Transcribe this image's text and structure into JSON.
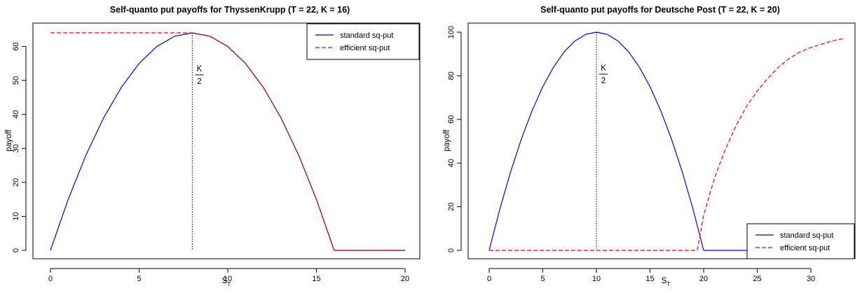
{
  "colors": {
    "standard": "#0000ff",
    "efficient": "#ff0000",
    "axis": "#000000",
    "annotation": "#000000"
  },
  "chart_data": [
    {
      "type": "line",
      "title": "Self-quanto put payoffs for ThyssenKrupp (T = 22, K = 16)",
      "xlabel": "S",
      "xlabel_sub": "T",
      "ylabel": "payoff",
      "xlim": [
        0,
        20
      ],
      "ylim": [
        0,
        64
      ],
      "xticks": [
        0,
        5,
        10,
        15,
        20
      ],
      "yticks": [
        0,
        10,
        20,
        30,
        40,
        50,
        60
      ],
      "grid": false,
      "legend_position": "top-right",
      "annotation": {
        "x": 8,
        "y_top": 64,
        "numerator": "K",
        "denominator": "2"
      },
      "series": [
        {
          "name": "standard sq-put",
          "style": "solid",
          "color": "#0000ff",
          "x": [
            0,
            1,
            2,
            3,
            4,
            5,
            6,
            7,
            8,
            9,
            10,
            11,
            12,
            13,
            14,
            15,
            16,
            17,
            18,
            19,
            20
          ],
          "y": [
            0,
            15,
            28,
            39,
            48,
            55,
            60,
            63,
            64,
            63,
            60,
            55,
            48,
            39,
            28,
            15,
            0,
            0,
            0,
            0,
            0
          ]
        },
        {
          "name": "efficient sq-put",
          "style": "dashed",
          "color": "#ff0000",
          "x": [
            0,
            1,
            2,
            3,
            4,
            5,
            6,
            7,
            8,
            9,
            10,
            11,
            12,
            13,
            14,
            15,
            16,
            17,
            18,
            19,
            20
          ],
          "y": [
            64,
            64,
            64,
            64,
            64,
            64,
            64,
            64,
            64,
            63,
            60,
            55,
            48,
            39,
            28,
            15,
            0,
            0,
            0,
            0,
            0
          ]
        }
      ]
    },
    {
      "type": "line",
      "title": "Self-quanto put payoffs for Deutsche Post (T = 22, K = 20)",
      "xlabel": "S",
      "xlabel_sub": "T",
      "ylabel": "payoff",
      "xlim": [
        0,
        33
      ],
      "ylim": [
        0,
        100
      ],
      "xticks": [
        0,
        5,
        10,
        15,
        20,
        25,
        30
      ],
      "yticks": [
        0,
        20,
        40,
        60,
        80,
        100
      ],
      "grid": false,
      "legend_position": "bottom-right",
      "annotation": {
        "x": 10,
        "y_top": 100,
        "numerator": "K",
        "denominator": "2"
      },
      "series": [
        {
          "name": "standard sq-put",
          "style": "solid",
          "color": "#0000ff",
          "x": [
            0,
            1,
            2,
            3,
            4,
            5,
            6,
            7,
            8,
            9,
            10,
            11,
            12,
            13,
            14,
            15,
            16,
            17,
            18,
            19,
            20,
            21,
            22,
            23,
            24,
            25,
            26,
            27,
            28,
            29,
            30,
            31,
            32,
            33
          ],
          "y": [
            0,
            19,
            36,
            51,
            64,
            75,
            84,
            91,
            96,
            99,
            100,
            99,
            96,
            91,
            84,
            75,
            64,
            51,
            36,
            19,
            0,
            0,
            0,
            0,
            0,
            0,
            0,
            0,
            0,
            0,
            0,
            0,
            0,
            0
          ]
        },
        {
          "name": "efficient sq-put",
          "style": "dashed",
          "color": "#ff0000",
          "x": [
            0,
            2,
            4,
            6,
            8,
            10,
            12,
            14,
            16,
            18,
            19,
            19.4,
            20,
            21,
            22,
            23,
            24,
            25,
            26,
            27,
            28,
            29,
            30,
            31,
            32,
            33
          ],
          "y": [
            0,
            0,
            0,
            0,
            0,
            0,
            0,
            0,
            0,
            0,
            0,
            0,
            16,
            33,
            46,
            57,
            66,
            73,
            79,
            84,
            88,
            91,
            93,
            94.5,
            96,
            97
          ]
        }
      ]
    }
  ]
}
